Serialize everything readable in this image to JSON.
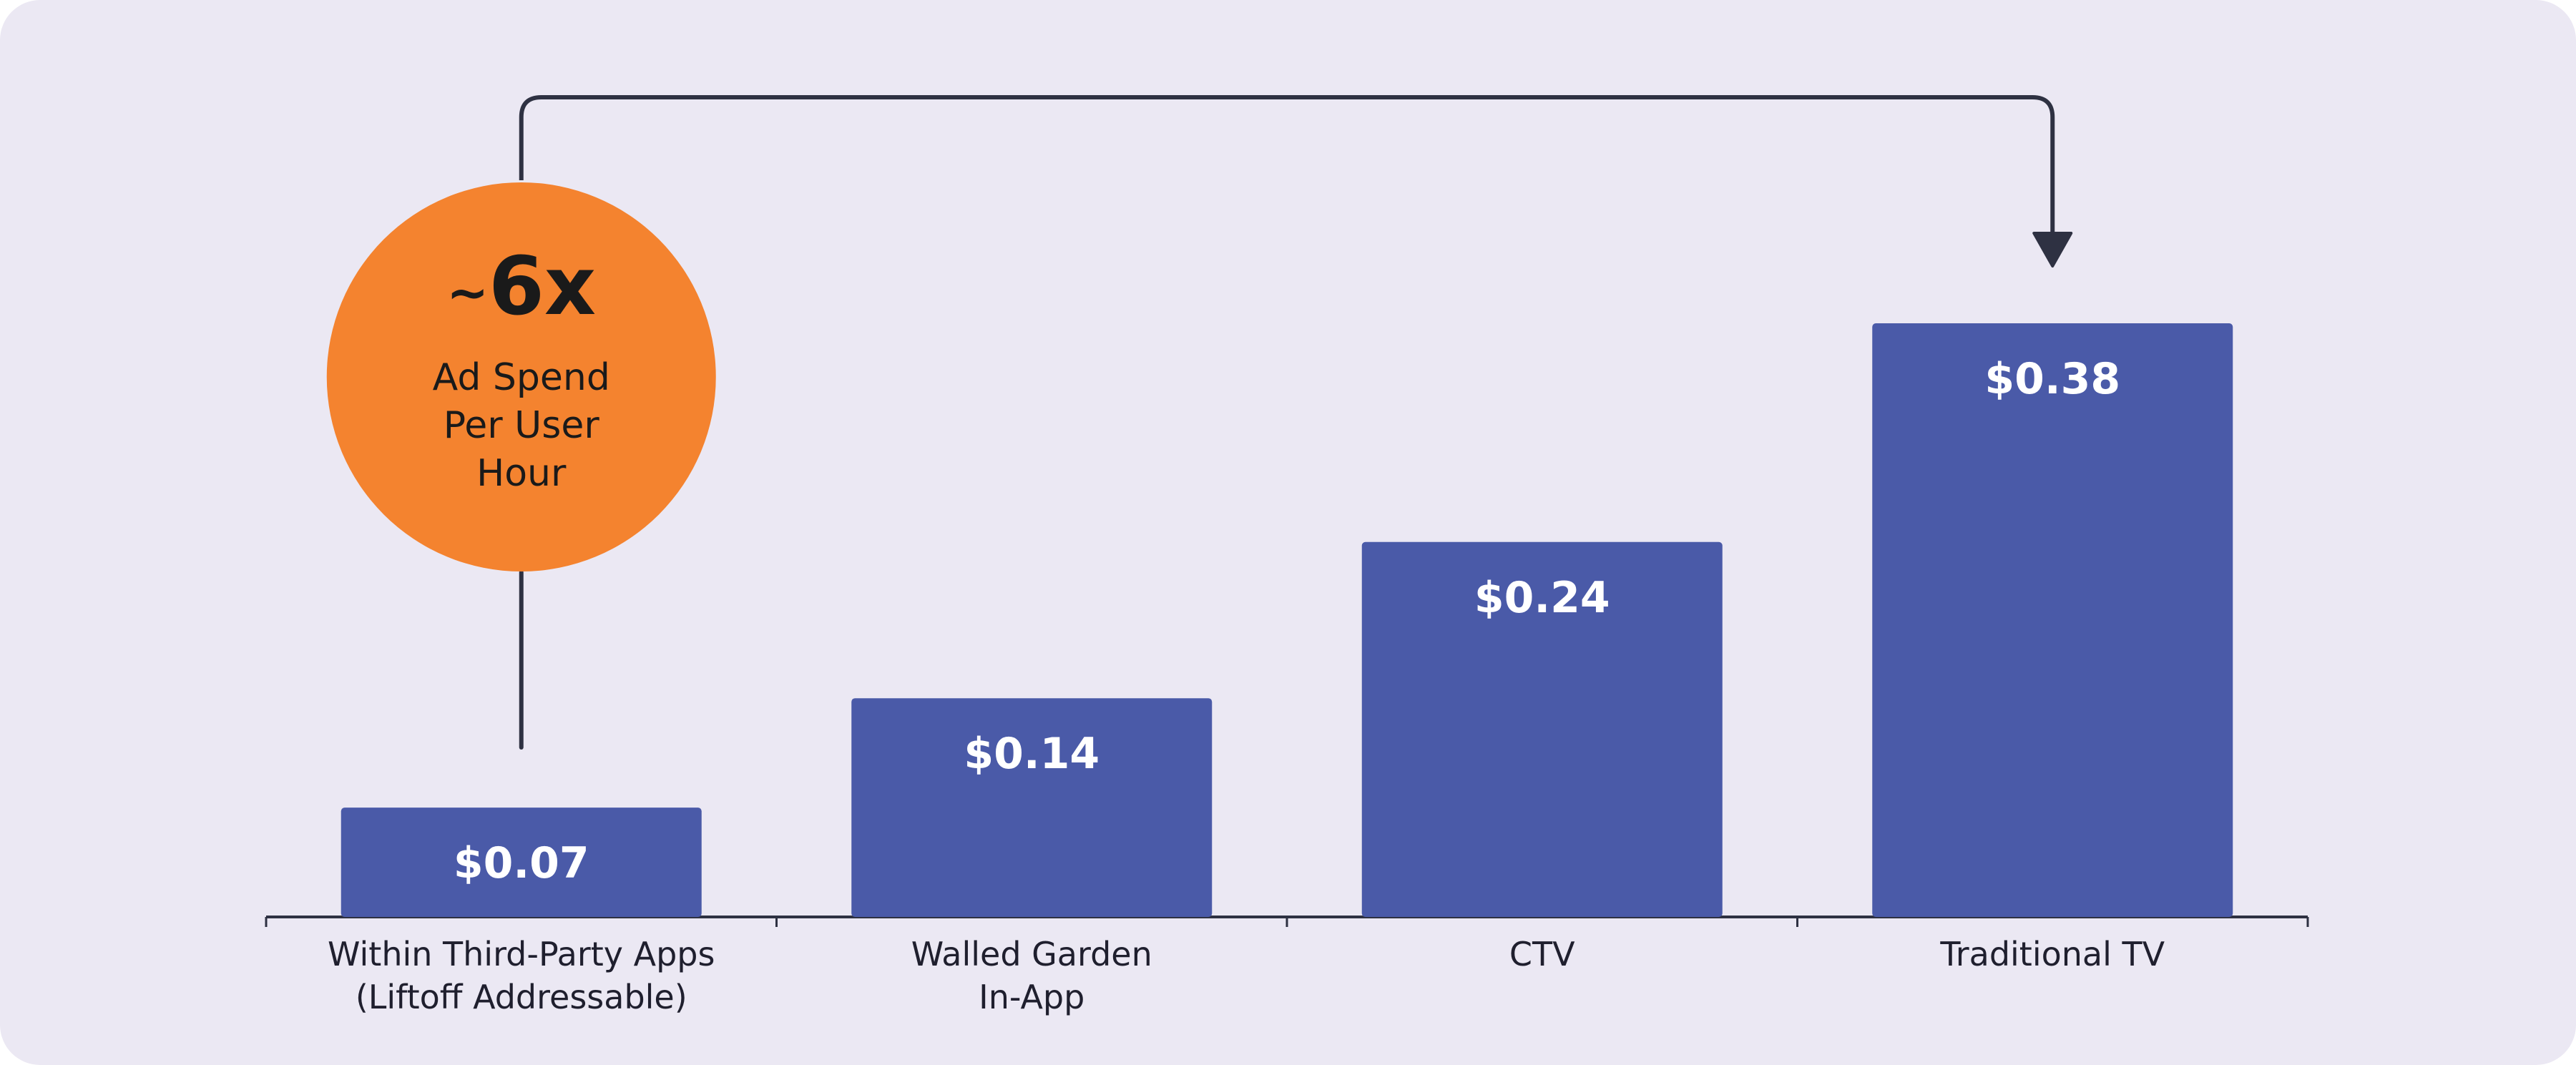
{
  "chart_data": {
    "type": "bar",
    "categories": [
      [
        "Within Third-Party Apps",
        "(Liftoff Addressable)"
      ],
      [
        "Walled Garden",
        "In-App"
      ],
      [
        "CTV"
      ],
      [
        "Traditional TV"
      ]
    ],
    "values": [
      0.07,
      0.14,
      0.24,
      0.38
    ],
    "value_labels": [
      "$0.07",
      "$0.14",
      "$0.24",
      "$0.38"
    ],
    "ylim": [
      0,
      0.38
    ],
    "grid": false,
    "annotation": {
      "tilde": "~",
      "multiplier": "6x",
      "lines": [
        "Ad Spend",
        "Per User",
        "Hour"
      ],
      "from_category": 0,
      "to_category": 3
    }
  },
  "colors": {
    "background": "#ebe8f3",
    "bar": "#4a5aa8",
    "annotation_circle": "#f4832f",
    "line": "#2e3142",
    "value_text": "#ffffff"
  }
}
